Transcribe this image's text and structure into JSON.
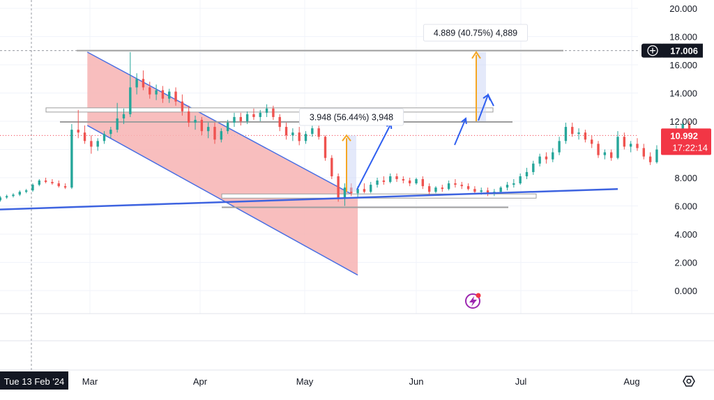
{
  "chart_data": {
    "type": "candlestick",
    "y_axis": {
      "ticks": [
        "20.000",
        "18.000",
        "16.000",
        "14.000",
        "12.000",
        "10.000",
        "8.000",
        "6.000",
        "4.000",
        "2.000",
        "0.000"
      ],
      "range": [
        -1.5,
        21
      ]
    },
    "x_axis": {
      "ticks": [
        "Mar",
        "Apr",
        "May",
        "Jun",
        "Jul",
        "Aug"
      ],
      "crosshair_label": "Tue 13 Feb '24"
    },
    "price_labels": {
      "crosshair_price": "17.006",
      "last_price": "10.992",
      "countdown": "17:22:14"
    },
    "annotations": {
      "measure_1": "3.948 (56.44%) 3,948",
      "measure_2": "4.889 (40.75%) 4,889"
    },
    "colors": {
      "up": "#26a69a",
      "down": "#ef5350",
      "channel_fill": "#f7b3b3",
      "channel_line": "#4a6fe3",
      "trendline": "#3d63e0",
      "hline": "#9e9e9e",
      "measure_arrow": "#f5a623",
      "move_arrow": "#2f5ff0",
      "last_price_bg": "#f23645"
    },
    "channel": {
      "upper": [
        [
          2024.162,
          16.9
        ],
        [
          2024.37,
          6.6
        ]
      ],
      "lower": [
        [
          2024.162,
          11.7
        ],
        [
          2024.37,
          1.1
        ]
      ]
    },
    "trendline": [
      [
        2024.08,
        5.7
      ],
      [
        2024.57,
        7.2
      ]
    ],
    "horizontal_levels": [
      17.006,
      12.8,
      11.95,
      6.7,
      5.9
    ],
    "candles": [
      [
        2024.06,
        5.8,
        6.0,
        5.7,
        5.9
      ],
      [
        2024.065,
        5.9,
        6.1,
        5.8,
        6.0
      ],
      [
        2024.07,
        6.0,
        6.3,
        5.9,
        6.2
      ],
      [
        2024.075,
        6.2,
        6.4,
        6.1,
        6.3
      ],
      [
        2024.08,
        6.3,
        6.5,
        6.2,
        6.4
      ],
      [
        2024.085,
        6.4,
        6.6,
        6.3,
        6.5
      ],
      [
        2024.09,
        6.5,
        6.6,
        6.3,
        6.4
      ],
      [
        2024.095,
        6.4,
        6.7,
        6.3,
        6.6
      ],
      [
        2024.1,
        6.6,
        6.8,
        6.5,
        6.7
      ],
      [
        2024.105,
        6.7,
        6.9,
        6.6,
        6.8
      ],
      [
        2024.11,
        6.8,
        7.1,
        6.7,
        7.0
      ],
      [
        2024.115,
        7.0,
        7.2,
        6.9,
        7.1
      ],
      [
        2024.12,
        7.1,
        7.6,
        7.0,
        7.5
      ],
      [
        2024.125,
        7.5,
        7.9,
        7.4,
        7.8
      ],
      [
        2024.13,
        7.8,
        8.0,
        7.6,
        7.7
      ],
      [
        2024.135,
        7.7,
        7.9,
        7.5,
        7.6
      ],
      [
        2024.14,
        7.6,
        7.8,
        7.3,
        7.4
      ],
      [
        2024.145,
        7.4,
        7.6,
        7.2,
        7.3
      ],
      [
        2024.15,
        7.3,
        11.8,
        7.2,
        11.4
      ],
      [
        2024.155,
        11.4,
        12.8,
        10.8,
        11.2
      ],
      [
        2024.16,
        11.2,
        11.7,
        10.4,
        10.6
      ],
      [
        2024.165,
        10.6,
        11.0,
        9.7,
        10.2
      ],
      [
        2024.17,
        10.2,
        10.8,
        9.9,
        10.6
      ],
      [
        2024.175,
        10.6,
        11.3,
        10.4,
        11.1
      ],
      [
        2024.18,
        11.1,
        11.6,
        10.8,
        11.4
      ],
      [
        2024.185,
        11.4,
        13.3,
        11.2,
        12.2
      ],
      [
        2024.19,
        12.2,
        12.9,
        11.8,
        12.5
      ],
      [
        2024.195,
        12.5,
        16.9,
        12.3,
        14.4
      ],
      [
        2024.2,
        14.4,
        15.4,
        13.9,
        15.0
      ],
      [
        2024.205,
        15.0,
        15.6,
        14.2,
        14.4
      ],
      [
        2024.21,
        14.4,
        14.8,
        13.6,
        13.9
      ],
      [
        2024.215,
        13.9,
        14.6,
        13.5,
        14.2
      ],
      [
        2024.22,
        14.2,
        14.5,
        13.3,
        13.6
      ],
      [
        2024.225,
        13.6,
        14.3,
        13.3,
        14.1
      ],
      [
        2024.23,
        14.1,
        14.4,
        13.1,
        13.4
      ],
      [
        2024.235,
        13.4,
        13.9,
        12.4,
        12.7
      ],
      [
        2024.24,
        12.7,
        13.1,
        11.6,
        11.9
      ],
      [
        2024.245,
        11.9,
        12.4,
        11.4,
        12.1
      ],
      [
        2024.25,
        12.1,
        12.3,
        11.0,
        11.3
      ],
      [
        2024.255,
        11.3,
        11.9,
        10.8,
        11.6
      ],
      [
        2024.26,
        11.6,
        11.9,
        10.4,
        10.7
      ],
      [
        2024.265,
        10.7,
        11.5,
        10.5,
        11.3
      ],
      [
        2024.27,
        11.3,
        12.1,
        11.1,
        11.9
      ],
      [
        2024.275,
        11.9,
        12.6,
        11.6,
        12.3
      ],
      [
        2024.28,
        12.3,
        12.6,
        11.7,
        12.0
      ],
      [
        2024.285,
        12.0,
        12.7,
        11.8,
        12.5
      ],
      [
        2024.29,
        12.5,
        12.9,
        12.1,
        12.3
      ],
      [
        2024.295,
        12.3,
        12.8,
        12.0,
        12.6
      ],
      [
        2024.3,
        12.6,
        13.2,
        12.3,
        12.9
      ],
      [
        2024.305,
        12.9,
        13.1,
        12.1,
        12.3
      ],
      [
        2024.31,
        12.3,
        12.5,
        11.3,
        11.6
      ],
      [
        2024.315,
        11.6,
        11.9,
        10.7,
        11.0
      ],
      [
        2024.32,
        11.0,
        11.5,
        10.6,
        11.2
      ],
      [
        2024.325,
        11.2,
        11.6,
        10.3,
        10.6
      ],
      [
        2024.33,
        10.6,
        11.3,
        10.4,
        11.1
      ],
      [
        2024.335,
        11.1,
        11.7,
        10.9,
        11.5
      ],
      [
        2024.34,
        11.5,
        11.7,
        10.7,
        10.9
      ],
      [
        2024.345,
        10.9,
        11.0,
        9.2,
        9.4
      ],
      [
        2024.35,
        9.4,
        9.6,
        7.9,
        8.1
      ],
      [
        2024.355,
        8.1,
        8.3,
        6.3,
        6.6
      ],
      [
        2024.36,
        6.6,
        7.6,
        6.0,
        7.3
      ],
      [
        2024.365,
        7.3,
        7.6,
        6.7,
        6.9
      ],
      [
        2024.37,
        6.9,
        7.4,
        6.6,
        7.2
      ],
      [
        2024.375,
        7.2,
        7.6,
        6.9,
        7.0
      ],
      [
        2024.38,
        7.0,
        7.7,
        6.9,
        7.5
      ],
      [
        2024.385,
        7.5,
        8.0,
        7.3,
        7.8
      ],
      [
        2024.39,
        7.8,
        8.1,
        7.5,
        7.7
      ],
      [
        2024.395,
        7.7,
        8.3,
        7.6,
        8.1
      ],
      [
        2024.4,
        8.1,
        8.3,
        7.7,
        7.9
      ],
      [
        2024.405,
        7.9,
        8.1,
        7.6,
        7.8
      ],
      [
        2024.41,
        7.8,
        8.0,
        7.4,
        7.6
      ],
      [
        2024.415,
        7.6,
        8.0,
        7.5,
        7.9
      ],
      [
        2024.42,
        7.9,
        8.1,
        7.2,
        7.4
      ],
      [
        2024.425,
        7.4,
        7.6,
        6.8,
        7.0
      ],
      [
        2024.43,
        7.0,
        7.4,
        6.9,
        7.3
      ],
      [
        2024.435,
        7.3,
        7.5,
        7.0,
        7.2
      ],
      [
        2024.44,
        7.2,
        7.8,
        7.1,
        7.6
      ],
      [
        2024.445,
        7.6,
        7.9,
        7.3,
        7.5
      ],
      [
        2024.45,
        7.5,
        7.7,
        7.2,
        7.4
      ],
      [
        2024.455,
        7.4,
        7.6,
        7.1,
        7.2
      ],
      [
        2024.46,
        7.2,
        7.4,
        6.9,
        7.0
      ],
      [
        2024.465,
        7.0,
        7.3,
        6.8,
        7.1
      ],
      [
        2024.47,
        7.1,
        7.3,
        6.7,
        6.9
      ],
      [
        2024.475,
        6.9,
        7.2,
        6.7,
        7.0
      ],
      [
        2024.48,
        7.0,
        7.4,
        6.9,
        7.3
      ],
      [
        2024.485,
        7.3,
        7.7,
        7.1,
        7.5
      ],
      [
        2024.49,
        7.5,
        7.9,
        7.3,
        7.6
      ],
      [
        2024.495,
        7.6,
        8.3,
        7.5,
        8.1
      ],
      [
        2024.5,
        8.1,
        8.7,
        7.9,
        8.4
      ],
      [
        2024.505,
        8.4,
        9.2,
        8.2,
        9.0
      ],
      [
        2024.51,
        9.0,
        9.7,
        8.8,
        9.5
      ],
      [
        2024.515,
        9.5,
        9.8,
        9.0,
        9.3
      ],
      [
        2024.52,
        9.3,
        10.1,
        9.1,
        9.8
      ],
      [
        2024.525,
        9.8,
        10.9,
        9.6,
        10.6
      ],
      [
        2024.53,
        10.6,
        11.9,
        10.4,
        11.6
      ],
      [
        2024.535,
        11.6,
        11.9,
        10.9,
        11.1
      ],
      [
        2024.54,
        11.1,
        11.5,
        10.7,
        11.2
      ],
      [
        2024.545,
        11.2,
        11.4,
        10.5,
        10.7
      ],
      [
        2024.55,
        10.7,
        11.0,
        10.1,
        10.4
      ],
      [
        2024.555,
        10.4,
        10.6,
        9.4,
        9.6
      ],
      [
        2024.56,
        9.6,
        10.0,
        9.3,
        9.8
      ],
      [
        2024.565,
        9.8,
        10.0,
        9.2,
        9.4
      ],
      [
        2024.57,
        9.4,
        11.3,
        9.3,
        10.9
      ],
      [
        2024.575,
        10.9,
        11.2,
        10.0,
        10.2
      ],
      [
        2024.58,
        10.2,
        10.6,
        9.8,
        10.4
      ],
      [
        2024.585,
        10.4,
        10.8,
        9.9,
        10.1
      ],
      [
        2024.59,
        10.1,
        10.4,
        9.3,
        9.5
      ],
      [
        2024.595,
        9.5,
        9.8,
        8.9,
        9.1
      ],
      [
        2024.6,
        9.1,
        10.3,
        9.0,
        10.0
      ],
      [
        2024.605,
        10.0,
        10.4,
        9.8,
        10.2
      ],
      [
        2024.61,
        10.2,
        10.9,
        10.0,
        10.7
      ],
      [
        2024.615,
        10.7,
        11.7,
        10.5,
        11.4
      ],
      [
        2024.62,
        11.4,
        12.0,
        11.2,
        11.8
      ],
      [
        2024.625,
        11.8,
        12.0,
        10.8,
        10.99
      ]
    ]
  }
}
